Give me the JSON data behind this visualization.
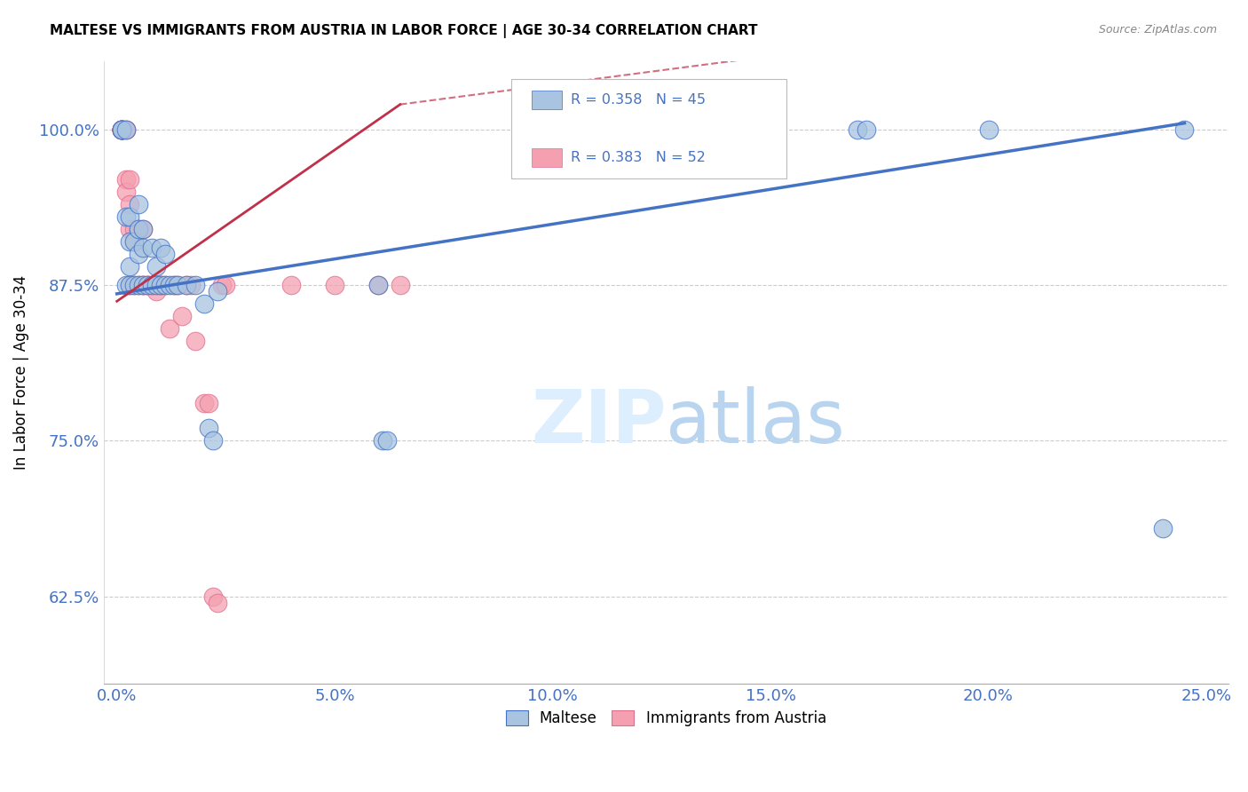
{
  "title": "MALTESE VS IMMIGRANTS FROM AUSTRIA IN LABOR FORCE | AGE 30-34 CORRELATION CHART",
  "source": "Source: ZipAtlas.com",
  "ylabel": "In Labor Force | Age 30-34",
  "legend_labels": [
    "Maltese",
    "Immigrants from Austria"
  ],
  "r_blue": 0.358,
  "n_blue": 45,
  "r_pink": 0.383,
  "n_pink": 52,
  "color_blue": "#a8c4e0",
  "color_pink": "#f4a0b0",
  "color_blue_edge": "#4472c4",
  "color_pink_edge": "#e07090",
  "trendline_blue": "#4472c4",
  "trendline_pink": "#c0304a",
  "watermark_color": "#ddeeff",
  "blue_x": [
    0.001,
    0.001,
    0.001,
    0.002,
    0.002,
    0.002,
    0.003,
    0.003,
    0.003,
    0.003,
    0.004,
    0.004,
    0.005,
    0.005,
    0.005,
    0.005,
    0.006,
    0.006,
    0.006,
    0.007,
    0.008,
    0.008,
    0.009,
    0.009,
    0.01,
    0.01,
    0.011,
    0.011,
    0.012,
    0.013,
    0.014,
    0.016,
    0.018,
    0.02,
    0.021,
    0.022,
    0.023,
    0.06,
    0.061,
    0.062,
    0.17,
    0.172,
    0.2,
    0.24,
    0.245
  ],
  "blue_y": [
    1.0,
    1.0,
    1.0,
    1.0,
    0.875,
    0.93,
    0.93,
    0.91,
    0.89,
    0.875,
    0.91,
    0.875,
    0.94,
    0.92,
    0.9,
    0.875,
    0.92,
    0.905,
    0.875,
    0.875,
    0.875,
    0.905,
    0.89,
    0.875,
    0.905,
    0.875,
    0.875,
    0.9,
    0.875,
    0.875,
    0.875,
    0.875,
    0.875,
    0.86,
    0.76,
    0.75,
    0.87,
    0.875,
    0.75,
    0.75,
    1.0,
    1.0,
    1.0,
    0.68,
    1.0
  ],
  "pink_x": [
    0.001,
    0.001,
    0.001,
    0.001,
    0.001,
    0.001,
    0.001,
    0.001,
    0.001,
    0.001,
    0.002,
    0.002,
    0.002,
    0.002,
    0.003,
    0.003,
    0.003,
    0.003,
    0.004,
    0.004,
    0.004,
    0.005,
    0.005,
    0.006,
    0.006,
    0.006,
    0.007,
    0.007,
    0.008,
    0.008,
    0.009,
    0.009,
    0.01,
    0.01,
    0.011,
    0.012,
    0.013,
    0.014,
    0.015,
    0.016,
    0.017,
    0.018,
    0.02,
    0.021,
    0.022,
    0.023,
    0.024,
    0.025,
    0.04,
    0.05,
    0.06,
    0.065
  ],
  "pink_y": [
    1.0,
    1.0,
    1.0,
    1.0,
    1.0,
    1.0,
    1.0,
    1.0,
    1.0,
    1.0,
    1.0,
    1.0,
    0.96,
    0.95,
    0.96,
    0.94,
    0.92,
    0.875,
    0.92,
    0.91,
    0.875,
    0.92,
    0.875,
    0.92,
    0.875,
    0.875,
    0.875,
    0.875,
    0.875,
    0.875,
    0.875,
    0.87,
    0.875,
    0.875,
    0.875,
    0.84,
    0.875,
    0.875,
    0.85,
    0.875,
    0.875,
    0.83,
    0.78,
    0.78,
    0.625,
    0.62,
    0.875,
    0.875,
    0.875,
    0.875,
    0.875,
    0.875
  ],
  "xlim": [
    -0.003,
    0.255
  ],
  "ylim": [
    0.555,
    1.055
  ],
  "yticks": [
    0.625,
    0.75,
    0.875,
    1.0
  ],
  "ytick_labels": [
    "62.5%",
    "75.0%",
    "87.5%",
    "100.0%"
  ],
  "xticks": [
    0.0,
    0.05,
    0.1,
    0.15,
    0.2,
    0.25
  ],
  "xtick_labels": [
    "0.0%",
    "5.0%",
    "10.0%",
    "15.0%",
    "20.0%",
    "25.0%"
  ],
  "blue_trend_x": [
    0.0,
    0.245
  ],
  "blue_trend_y": [
    0.868,
    1.005
  ],
  "pink_trend_x": [
    0.0,
    0.065
  ],
  "pink_trend_y": [
    0.862,
    1.02
  ]
}
